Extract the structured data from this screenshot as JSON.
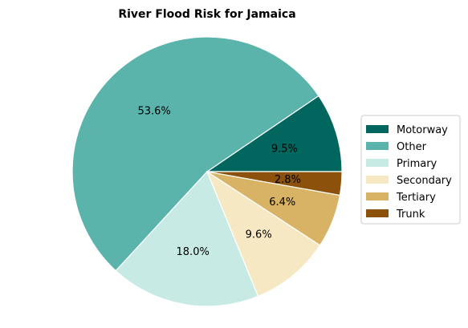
{
  "chart_data": {
    "type": "pie",
    "title": "River Flood Risk for Jamaica",
    "categories": [
      "Motorway",
      "Other",
      "Primary",
      "Secondary",
      "Tertiary",
      "Trunk"
    ],
    "values": [
      9.5,
      53.6,
      18.0,
      9.6,
      6.4,
      2.8
    ],
    "labels": [
      "9.5%",
      "53.6%",
      "18.0%",
      "9.6%",
      "6.4%",
      "2.8%"
    ],
    "colors": [
      "#01665e",
      "#5ab4ac",
      "#c7eae5",
      "#f6e8c3",
      "#d8b365",
      "#8c510a"
    ],
    "legend_position": "right"
  }
}
